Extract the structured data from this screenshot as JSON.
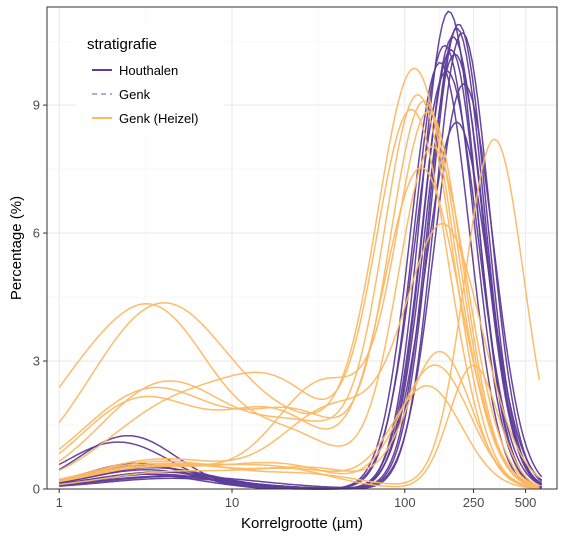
{
  "chart_data": {
    "type": "line",
    "xlabel": "Korrelgrootte (µm)",
    "ylabel": "Percentage (%)",
    "x_scale": "log10",
    "xlim": [
      0.85,
      760
    ],
    "ylim": [
      0,
      11.3
    ],
    "x_ticks": [
      1,
      10,
      100,
      250,
      500
    ],
    "x_tick_labels": [
      "1",
      "10",
      "100",
      "250",
      "500"
    ],
    "y_ticks": [
      0,
      3,
      6,
      9
    ],
    "y_tick_labels": [
      "0",
      "3",
      "6",
      "9"
    ],
    "grid": true,
    "legend": {
      "title": "stratigrafie",
      "position": "top-left",
      "entries": [
        {
          "label": "Houthalen",
          "color": "#5e3c99",
          "dash": "solid"
        },
        {
          "label": "Genk",
          "color": "#b2abd2",
          "dash": "dashed"
        },
        {
          "label": "Genk (Heizel)",
          "color": "#fdb863",
          "dash": "solid"
        }
      ]
    },
    "series": [
      {
        "group": "Houthalen",
        "color": "#5e3c99",
        "peak": 10.6,
        "center": 190,
        "width": 0.17,
        "fine": [
          [
            3.0,
            0.35,
            0.32
          ]
        ]
      },
      {
        "group": "Houthalen",
        "color": "#5e3c99",
        "peak": 11.2,
        "center": 180,
        "width": 0.16,
        "fine": [
          [
            2.5,
            1.25,
            0.28
          ]
        ]
      },
      {
        "group": "Houthalen",
        "color": "#5e3c99",
        "peak": 10.9,
        "center": 205,
        "width": 0.16,
        "fine": [
          [
            3.5,
            0.5,
            0.35
          ]
        ]
      },
      {
        "group": "Houthalen",
        "color": "#5e3c99",
        "peak": 10.4,
        "center": 170,
        "width": 0.17,
        "fine": [
          [
            4.0,
            0.3,
            0.4
          ]
        ]
      },
      {
        "group": "Houthalen",
        "color": "#5e3c99",
        "peak": 10.7,
        "center": 215,
        "width": 0.16,
        "fine": [
          [
            3.2,
            0.45,
            0.33
          ]
        ]
      },
      {
        "group": "Houthalen",
        "color": "#5e3c99",
        "peak": 10.2,
        "center": 195,
        "width": 0.17,
        "fine": [
          [
            2.8,
            0.6,
            0.3
          ]
        ]
      },
      {
        "group": "Houthalen",
        "color": "#5e3c99",
        "peak": 9.8,
        "center": 175,
        "width": 0.18,
        "fine": [
          [
            3.8,
            0.4,
            0.36
          ]
        ]
      },
      {
        "group": "Houthalen",
        "color": "#5e3c99",
        "peak": 9.5,
        "center": 220,
        "width": 0.17,
        "fine": [
          [
            4.5,
            0.25,
            0.4
          ]
        ]
      },
      {
        "group": "Houthalen",
        "color": "#5e3c99",
        "peak": 10.0,
        "center": 160,
        "width": 0.17,
        "fine": [
          [
            3.0,
            0.55,
            0.35
          ]
        ]
      },
      {
        "group": "Houthalen",
        "color": "#5e3c99",
        "peak": 8.6,
        "center": 200,
        "width": 0.18,
        "fine": [
          [
            2.2,
            1.1,
            0.3
          ]
        ]
      },
      {
        "group": "Houthalen",
        "color": "#5e3c99",
        "peak": 10.3,
        "center": 185,
        "width": 0.16,
        "fine": [
          [
            3.6,
            0.35,
            0.35
          ]
        ]
      },
      {
        "group": "Houthalen",
        "color": "#5e3c99",
        "peak": 10.8,
        "center": 200,
        "width": 0.16,
        "fine": [
          [
            5.0,
            0.3,
            0.45
          ]
        ]
      },
      {
        "group": "Genk (Heizel)",
        "color": "#fdb863",
        "peak": 9.7,
        "center": 115,
        "width": 0.22,
        "fine": [
          [
            4.0,
            4.35,
            0.42
          ],
          [
            30,
            1.0,
            0.3
          ]
        ]
      },
      {
        "group": "Genk (Heizel)",
        "color": "#fdb863",
        "peak": 9.1,
        "center": 120,
        "width": 0.2,
        "fine": [
          [
            4.2,
            2.5,
            0.38
          ],
          [
            28,
            1.3,
            0.3
          ]
        ]
      },
      {
        "group": "Genk (Heizel)",
        "color": "#fdb863",
        "peak": 9.0,
        "center": 130,
        "width": 0.2,
        "fine": [
          [
            3.5,
            2.35,
            0.4
          ],
          [
            25,
            1.6,
            0.3
          ]
        ]
      },
      {
        "group": "Genk (Heizel)",
        "color": "#fdb863",
        "peak": 8.8,
        "center": 110,
        "width": 0.21,
        "fine": [
          [
            5.0,
            2.0,
            0.4
          ],
          [
            20,
            1.9,
            0.3
          ]
        ]
      },
      {
        "group": "Genk (Heizel)",
        "color": "#fdb863",
        "peak": 8.2,
        "center": 330,
        "width": 0.17,
        "fine": [
          [
            4.0,
            0.65,
            0.4
          ],
          [
            30,
            0.3,
            0.3
          ]
        ]
      },
      {
        "group": "Genk (Heizel)",
        "color": "#fdb863",
        "peak": 8.6,
        "center": 140,
        "width": 0.19,
        "fine": [
          [
            4.0,
            0.55,
            0.4
          ],
          [
            35,
            2.5,
            0.28
          ]
        ]
      },
      {
        "group": "Genk (Heizel)",
        "color": "#fdb863",
        "peak": 3.2,
        "center": 160,
        "width": 0.18,
        "fine": [
          [
            4.0,
            0.6,
            0.4
          ],
          [
            30,
            0.45,
            0.3
          ]
        ]
      },
      {
        "group": "Genk (Heizel)",
        "color": "#fdb863",
        "peak": 2.9,
        "center": 150,
        "width": 0.2,
        "fine": [
          [
            3.5,
            0.5,
            0.42
          ],
          [
            20,
            0.5,
            0.3
          ]
        ]
      },
      {
        "group": "Genk (Heizel)",
        "color": "#fdb863",
        "peak": 2.4,
        "center": 135,
        "width": 0.2,
        "fine": [
          [
            4.5,
            0.4,
            0.4
          ],
          [
            25,
            0.4,
            0.3
          ]
        ]
      },
      {
        "group": "Genk (Heizel)",
        "color": "#fdb863",
        "peak": 2.9,
        "center": 250,
        "width": 0.14,
        "fine": [
          [
            4.0,
            0.55,
            0.4
          ],
          [
            20,
            0.4,
            0.3
          ]
        ]
      },
      {
        "group": "Genk (Heizel)",
        "color": "#fdb863",
        "peak": 7.5,
        "center": 125,
        "width": 0.22,
        "fine": [
          [
            3.0,
            2.1,
            0.35
          ],
          [
            18,
            1.7,
            0.3
          ]
        ]
      },
      {
        "group": "Genk (Heizel)",
        "color": "#fdb863",
        "peak": 8.0,
        "center": 145,
        "width": 0.2,
        "fine": [
          [
            1.2,
            1.7,
            0.3
          ],
          [
            3.8,
            3.8,
            0.32
          ],
          [
            22,
            1.2,
            0.3
          ]
        ]
      },
      {
        "group": "Genk (Heizel)",
        "color": "#fdb863",
        "peak": 6.0,
        "center": 170,
        "width": 0.22,
        "fine": [
          [
            4.0,
            0.7,
            0.4
          ],
          [
            40,
            1.9,
            0.3
          ]
        ]
      }
    ]
  }
}
